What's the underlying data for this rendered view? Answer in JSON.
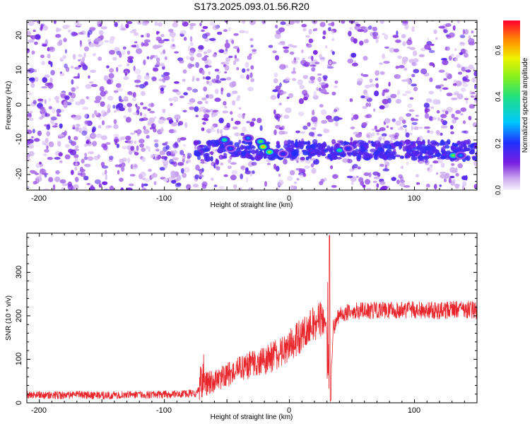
{
  "title": "S173.2025.093.01.56.R20",
  "chart_data": [
    {
      "type": "heatmap",
      "xlabel": "Height of straight line (km)",
      "ylabel": "Frequency (Hz)",
      "xlim": [
        -210,
        150
      ],
      "ylim": [
        -24.5,
        24.5
      ],
      "xticks": [
        "-200",
        "-100",
        "0",
        "100"
      ],
      "yticks": [
        "20",
        "10",
        "0",
        "-10",
        "-20"
      ],
      "colorbar": {
        "label": "Normalized spectral amplitude",
        "range": [
          0.0,
          0.7
        ],
        "ticks": [
          "0.0",
          "0.2",
          "0.4",
          "0.6"
        ],
        "colormap": "rainbow (violet-blue-cyan-green-yellow-red)"
      },
      "background_color": "#9f6bdb",
      "signal_band": {
        "x_start": -75,
        "x_end": 150,
        "frequency_center": -13,
        "frequency_width": 5
      },
      "hotspots": [
        {
          "x": -52,
          "freq": -10,
          "amplitude": 0.38
        },
        {
          "x": -47,
          "freq": -12.5,
          "amplitude": 0.22
        },
        {
          "x": -33,
          "freq": -9.5,
          "amplitude": 0.25
        },
        {
          "x": -23,
          "freq": -10.5,
          "amplitude": 0.42
        },
        {
          "x": -21,
          "freq": -12,
          "amplitude": 0.6
        },
        {
          "x": -16,
          "freq": -13.5,
          "amplitude": 0.48
        },
        {
          "x": -5,
          "freq": -14,
          "amplitude": 0.2
        },
        {
          "x": 40,
          "freq": -13,
          "amplitude": 0.38
        },
        {
          "x": 47,
          "freq": -12.5,
          "amplitude": 0.2
        },
        {
          "x": 131,
          "freq": -14.5,
          "amplitude": 0.45
        },
        {
          "x": 137,
          "freq": -14.5,
          "amplitude": 0.25
        }
      ]
    },
    {
      "type": "line",
      "xlabel": "Height of straight line (km)",
      "ylabel": "SNR (10 * v/v)",
      "xlim": [
        -210,
        150
      ],
      "ylim": [
        0,
        390
      ],
      "xticks": [
        "-200",
        "-100",
        "0",
        "100"
      ],
      "yticks": [
        "0",
        "100",
        "200",
        "300"
      ],
      "color": "#e8262c",
      "series": [
        {
          "x": [
            -210,
            -190,
            -170,
            -150,
            -130,
            -110,
            -90,
            -75,
            -70,
            -60,
            -50,
            -40,
            -30,
            -20,
            -10,
            0,
            10,
            20,
            25,
            30,
            33,
            35,
            40,
            50,
            60,
            80,
            100,
            120,
            140,
            150
          ],
          "values": [
            18,
            17,
            18,
            17,
            18,
            18,
            20,
            22,
            40,
            50,
            65,
            78,
            90,
            98,
            110,
            130,
            155,
            180,
            195,
            175,
            40,
            170,
            205,
            210,
            212,
            212,
            214,
            212,
            215,
            213
          ]
        }
      ]
    }
  ]
}
